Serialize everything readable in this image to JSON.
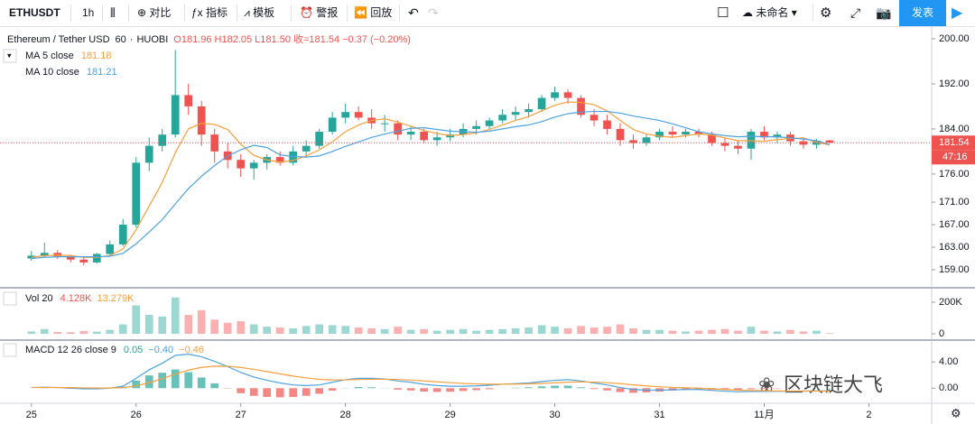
{
  "toolbar": {
    "symbol": "ETHUSDT",
    "interval": "1h",
    "buttons": [
      "对比",
      "指标",
      "模板",
      "警报",
      "回放"
    ],
    "layout_name": "未命名",
    "publish": "发表"
  },
  "chart_data": {
    "type": "candlestick",
    "title": "Ethereum / Tether USD",
    "interval": "60",
    "exchange": "HUOBI",
    "ohlc_legend": "O181.96 H182.05 L181.50 收=181.54 −0.37 (−0.20%)",
    "countdown": "47:16",
    "up_color": "#26a69a",
    "down_color": "#ef5350",
    "xlim": [
      -2.4,
      68.8
    ],
    "xticks": [
      {
        "value": 0,
        "label": "25"
      },
      {
        "value": 8,
        "label": "26"
      },
      {
        "value": 16,
        "label": "27"
      },
      {
        "value": 24,
        "label": "28"
      },
      {
        "value": 32,
        "label": "29"
      },
      {
        "value": 40,
        "label": "30"
      },
      {
        "value": 48,
        "label": "31"
      },
      {
        "value": 56,
        "label": "11月"
      },
      {
        "value": 64,
        "label": "2"
      }
    ],
    "ylim": [
      155.96,
      202.08
    ],
    "yticks": [
      {
        "value": 159,
        "label": "159.00"
      },
      {
        "value": 163,
        "label": "163.00"
      },
      {
        "value": 167,
        "label": "167.00"
      },
      {
        "value": 171,
        "label": "171.00"
      },
      {
        "value": 176,
        "label": "176.00"
      },
      {
        "value": 184,
        "label": "184.00"
      },
      {
        "value": 192,
        "label": "192.00"
      },
      {
        "value": 200,
        "label": "200.00"
      }
    ],
    "candles": [
      [
        161,
        162.3,
        160.6,
        161.5
      ],
      [
        161.5,
        163.8,
        161.2,
        162
      ],
      [
        162,
        162.5,
        160.9,
        161.3
      ],
      [
        161.3,
        161.7,
        160.3,
        160.8
      ],
      [
        160.8,
        161.2,
        159.8,
        160.3
      ],
      [
        160.3,
        162,
        160.1,
        161.8
      ],
      [
        161.8,
        164.2,
        161.5,
        163.5
      ],
      [
        163.5,
        168,
        163.2,
        167
      ],
      [
        167,
        179,
        166.5,
        178
      ],
      [
        178,
        182.5,
        176.5,
        181
      ],
      [
        181,
        184,
        180,
        183
      ],
      [
        183,
        198,
        182.5,
        190
      ],
      [
        190,
        192,
        186.5,
        188
      ],
      [
        188,
        189,
        181,
        183
      ],
      [
        183,
        184,
        178,
        180
      ],
      [
        180,
        181.5,
        177,
        178.5
      ],
      [
        178.5,
        179.5,
        175.5,
        177
      ],
      [
        177,
        178.5,
        175,
        178
      ],
      [
        178,
        179.5,
        176.8,
        179
      ],
      [
        179,
        180,
        177.5,
        178
      ],
      [
        178,
        181,
        177.5,
        180
      ],
      [
        180,
        182,
        179,
        181
      ],
      [
        181,
        184,
        180.5,
        183.5
      ],
      [
        183.5,
        187,
        183,
        186
      ],
      [
        186,
        188.5,
        185,
        187
      ],
      [
        187,
        188,
        185.5,
        186
      ],
      [
        186,
        187.5,
        184,
        185
      ],
      [
        185,
        186.5,
        183.5,
        185
      ],
      [
        185,
        185.5,
        182,
        183
      ],
      [
        183,
        184.5,
        182,
        183.5
      ],
      [
        183.5,
        184,
        181.5,
        182
      ],
      [
        182,
        183.5,
        181,
        182.5
      ],
      [
        182.5,
        184,
        181.8,
        183
      ],
      [
        183,
        185,
        182.5,
        184
      ],
      [
        184,
        185.5,
        183,
        184.5
      ],
      [
        184.5,
        186,
        183.8,
        185.5
      ],
      [
        185.5,
        187.5,
        185,
        186.5
      ],
      [
        186.5,
        188,
        185.5,
        187
      ],
      [
        187,
        188.5,
        186,
        187.5
      ],
      [
        187.5,
        190,
        187,
        189.5
      ],
      [
        189.5,
        191.5,
        189,
        190.5
      ],
      [
        190.5,
        191,
        188.5,
        189.5
      ],
      [
        189.5,
        190,
        186,
        186.5
      ],
      [
        186.5,
        187.5,
        184.5,
        185.5
      ],
      [
        185.5,
        186.5,
        183,
        184
      ],
      [
        184,
        185,
        181,
        182
      ],
      [
        182,
        183,
        180.5,
        181.5
      ],
      [
        181.5,
        183,
        181,
        182.5
      ],
      [
        182.5,
        184,
        182,
        183.5
      ],
      [
        183.5,
        184.5,
        182.5,
        183
      ],
      [
        183,
        184,
        182.5,
        183.5
      ],
      [
        183.5,
        184,
        182.5,
        183
      ],
      [
        183,
        183.5,
        181,
        181.5
      ],
      [
        181.5,
        182.5,
        180,
        181
      ],
      [
        181,
        182,
        179.5,
        180.5
      ],
      [
        180.5,
        184,
        178.5,
        183.5
      ],
      [
        183.5,
        184.5,
        182,
        182.5
      ],
      [
        182.5,
        183.5,
        181.5,
        183
      ],
      [
        183,
        183.5,
        181,
        181.8
      ],
      [
        181.8,
        182.5,
        180.5,
        181.2
      ],
      [
        181.2,
        182.2,
        180.5,
        181.91
      ],
      [
        181.96,
        182.05,
        181.5,
        181.54
      ]
    ],
    "series": [
      {
        "name": "MA 5 close",
        "color": "#f7a03c",
        "values": [
          161.2,
          161.5,
          161.6,
          161.5,
          161.2,
          161.2,
          161.5,
          162.7,
          166.1,
          170.3,
          174.5,
          179.8,
          184,
          185,
          184.8,
          183.9,
          181.3,
          179.3,
          178.5,
          178.1,
          178.4,
          179.2,
          180.3,
          181.7,
          183.5,
          184.7,
          185.5,
          185.8,
          185.2,
          184.5,
          183.7,
          183.2,
          182.8,
          183,
          183.3,
          183.9,
          184.7,
          185.5,
          186.2,
          187.2,
          188.2,
          188.8,
          188.7,
          188.3,
          187.2,
          185.5,
          183.9,
          183.1,
          182.7,
          182.5,
          182.8,
          183.1,
          182.9,
          182.4,
          181.9,
          181.9,
          181.8,
          182.1,
          182.3,
          182.4,
          181.6,
          181.18
        ]
      },
      {
        "name": "MA 10 close",
        "color": "#4ea3e0",
        "values": [
          161,
          161.2,
          161.3,
          161.3,
          161.3,
          161.3,
          161.4,
          161.9,
          163.6,
          165.7,
          167.9,
          170.7,
          173.4,
          175.6,
          177.5,
          179.2,
          180.3,
          181.1,
          180.7,
          179.4,
          179.1,
          179,
          179.2,
          180,
          180.9,
          181.7,
          182.5,
          183.1,
          183.6,
          184.1,
          184.2,
          183.9,
          183.6,
          183.5,
          183.4,
          183.6,
          184,
          184.4,
          184.7,
          185.3,
          186.1,
          186.7,
          187,
          187.1,
          187.1,
          186.8,
          186.3,
          185.9,
          185.5,
          184.9,
          184.2,
          183.5,
          183.1,
          182.8,
          182.6,
          182.7,
          182.6,
          182.6,
          182.4,
          182.2,
          181.9,
          181.21
        ]
      }
    ],
    "volume": {
      "title": "Vol 20",
      "legend_values": [
        "4.128K",
        "13.279K"
      ],
      "ylim": [
        -34000,
        286000
      ],
      "yticks": [
        0,
        {
          "value": 200000,
          "label": "200K"
        }
      ],
      "values": [
        15000,
        30000,
        12000,
        10000,
        18000,
        14000,
        25000,
        60000,
        180000,
        120000,
        110000,
        230000,
        120000,
        150000,
        90000,
        70000,
        80000,
        60000,
        45000,
        40000,
        35000,
        50000,
        60000,
        55000,
        50000,
        40000,
        35000,
        30000,
        45000,
        25000,
        30000,
        20000,
        25000,
        30000,
        20000,
        25000,
        30000,
        35000,
        40000,
        55000,
        45000,
        35000,
        50000,
        40000,
        45000,
        60000,
        35000,
        25000,
        25000,
        20000,
        15000,
        20000,
        25000,
        30000,
        20000,
        45000,
        20000,
        15000,
        25000,
        15000,
        20000,
        4128
      ]
    },
    "macd": {
      "title": "MACD 12 26 close 9",
      "legend_values": [
        "0.05",
        "−0.40",
        "−0.46"
      ],
      "ylim": [
        -2.3,
        7.2
      ],
      "yticks": [
        {
          "value": 0,
          "label": "0.00"
        },
        {
          "value": 4,
          "label": "4.00"
        }
      ],
      "macd_color": "#4ea3e0",
      "signal_color": "#f7a03c",
      "macd": [
        0.1,
        0.15,
        0.1,
        0,
        -0.1,
        -0.1,
        0,
        0.3,
        1.5,
        2.8,
        3.8,
        5,
        5.2,
        4.8,
        4.1,
        3.3,
        2.4,
        1.7,
        1.2,
        0.8,
        0.5,
        0.4,
        0.5,
        0.9,
        1.3,
        1.5,
        1.5,
        1.4,
        1.1,
        0.9,
        0.6,
        0.4,
        0.3,
        0.3,
        0.35,
        0.45,
        0.6,
        0.7,
        0.8,
        1,
        1.2,
        1.3,
        1.1,
        0.8,
        0.5,
        0.1,
        -0.2,
        -0.3,
        -0.3,
        -0.25,
        -0.2,
        -0.2,
        -0.35,
        -0.45,
        -0.55,
        -0.5,
        -0.5,
        -0.48,
        -0.46,
        -0.44,
        -0.42,
        -0.4
      ],
      "signal": [
        0.1,
        0.11,
        0.11,
        0.09,
        0.05,
        0.02,
        0.02,
        0.07,
        0.36,
        0.85,
        1.44,
        2.15,
        2.76,
        3.17,
        3.36,
        3.35,
        3.16,
        2.87,
        2.54,
        2.19,
        1.85,
        1.56,
        1.35,
        1.26,
        1.27,
        1.32,
        1.36,
        1.37,
        1.32,
        1.24,
        1.11,
        0.97,
        0.84,
        0.73,
        0.65,
        0.61,
        0.61,
        0.63,
        0.66,
        0.73,
        0.82,
        0.92,
        0.96,
        0.93,
        0.84,
        0.69,
        0.51,
        0.35,
        0.22,
        0.12,
        0.06,
        0.01,
        -0.1,
        -0.2,
        -0.3,
        -0.35,
        -0.39,
        -0.42,
        -0.43,
        -0.44,
        -0.45,
        -0.46
      ],
      "histogram": [
        0,
        0.04,
        -0.01,
        -0.09,
        -0.15,
        -0.12,
        -0.02,
        0.23,
        1.14,
        1.95,
        2.36,
        2.85,
        2.44,
        1.63,
        0.74,
        -0.05,
        -0.76,
        -1.17,
        -1.34,
        -1.39,
        -1.35,
        -1.16,
        -0.85,
        -0.36,
        0.03,
        0.18,
        0.14,
        0.03,
        -0.22,
        -0.34,
        -0.51,
        -0.57,
        -0.54,
        -0.43,
        -0.3,
        -0.16,
        -0.01,
        0.07,
        0.14,
        0.27,
        0.38,
        0.38,
        0.14,
        -0.13,
        -0.34,
        -0.59,
        -0.71,
        -0.65,
        -0.52,
        -0.37,
        -0.26,
        -0.21,
        -0.25,
        -0.25,
        -0.25,
        -0.15,
        -0.11,
        -0.06,
        -0.03,
        0,
        0.03,
        0.05
      ]
    }
  },
  "watermark": "区块链大飞"
}
